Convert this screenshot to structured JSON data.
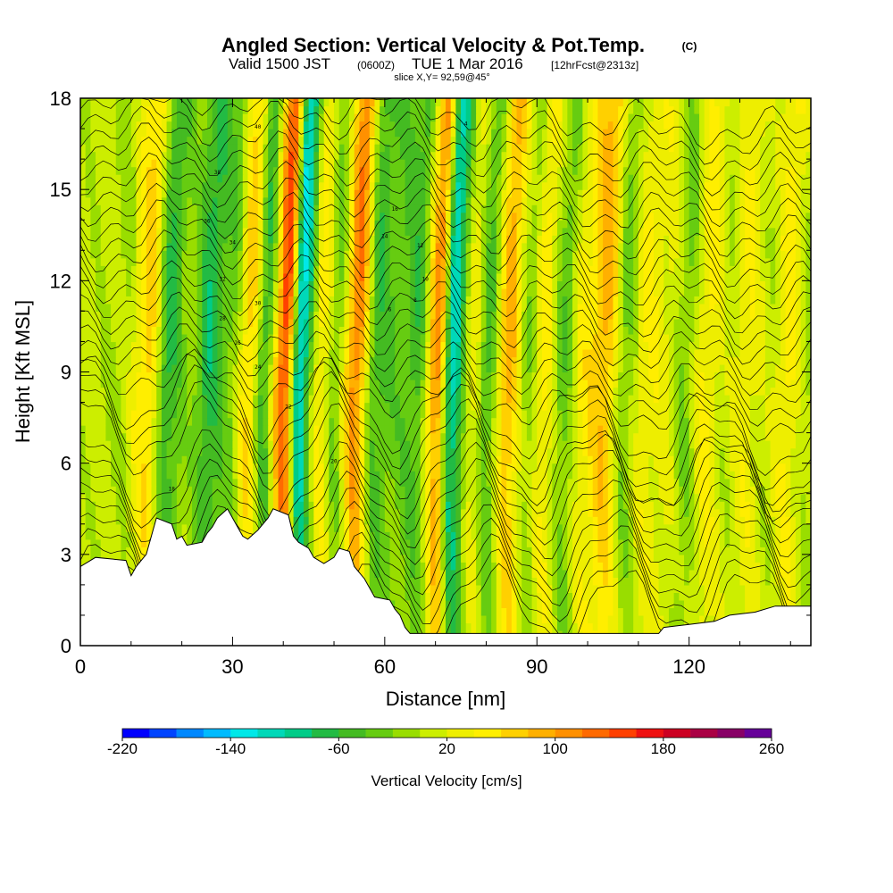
{
  "titles": {
    "main": "Angled Section: Vertical Velocity & Pot.Temp.",
    "main_suffix": "(C)",
    "line2_a": "Valid 1500 JST",
    "line2_b": "(0600Z)",
    "line2_c": "TUE 1 Mar 2016",
    "line2_d": "[12hrFcst@2313z]",
    "line3": "slice X,Y= 92,59@45°"
  },
  "chart_data": {
    "type": "heatmap",
    "title": "Angled Section: Vertical Velocity & Pot.Temp.",
    "xlabel": "Distance [nm]",
    "ylabel": "Height [Kft MSL]",
    "xlim": [
      0,
      144
    ],
    "ylim": [
      0,
      18
    ],
    "x_ticks": [
      0,
      30,
      60,
      90,
      120
    ],
    "y_ticks": [
      0,
      3,
      6,
      9,
      12,
      15,
      18
    ],
    "x_tick_labels": [
      "0",
      "30",
      "60",
      "90",
      "120"
    ],
    "y_tick_labels": [
      "0",
      "3",
      "6",
      "9",
      "12",
      "15",
      "18"
    ],
    "colorbar": {
      "title": "Vertical Velocity [cm/s]",
      "min": -220,
      "max": 260,
      "step": 20,
      "tick_values": [
        "-220",
        "-140",
        "-60",
        "20",
        "100",
        "180",
        "260"
      ],
      "colors": [
        "#0000ff",
        "#0044ff",
        "#0088ff",
        "#00bbff",
        "#00e8e8",
        "#00d8b8",
        "#00cc88",
        "#22bb44",
        "#44bb22",
        "#66cc11",
        "#99dd00",
        "#ccee00",
        "#eeee00",
        "#ffee00",
        "#ffd000",
        "#ffb000",
        "#ff9000",
        "#ff6a00",
        "#ff4000",
        "#ee1111",
        "#cc0022",
        "#aa0044",
        "#880066",
        "#660099"
      ]
    },
    "velocity_columns": [
      {
        "x": 3,
        "v": 0
      },
      {
        "x": 8,
        "v": -10
      },
      {
        "x": 13,
        "v": 60
      },
      {
        "x": 17,
        "v": -70
      },
      {
        "x": 21,
        "v": -20
      },
      {
        "x": 25,
        "v": -80
      },
      {
        "x": 29,
        "v": -40
      },
      {
        "x": 33,
        "v": 60
      },
      {
        "x": 36,
        "v": -60
      },
      {
        "x": 40,
        "v": 140
      },
      {
        "x": 43,
        "v": -130
      },
      {
        "x": 47,
        "v": 40
      },
      {
        "x": 50,
        "v": -30
      },
      {
        "x": 54,
        "v": 110
      },
      {
        "x": 58,
        "v": -60
      },
      {
        "x": 62,
        "v": -40
      },
      {
        "x": 66,
        "v": -60
      },
      {
        "x": 70,
        "v": 100
      },
      {
        "x": 73,
        "v": -120
      },
      {
        "x": 77,
        "v": 20
      },
      {
        "x": 80,
        "v": -50
      },
      {
        "x": 84,
        "v": 80
      },
      {
        "x": 88,
        "v": -20
      },
      {
        "x": 91,
        "v": 40
      },
      {
        "x": 95,
        "v": -40
      },
      {
        "x": 99,
        "v": 40
      },
      {
        "x": 103,
        "v": 80
      },
      {
        "x": 107,
        "v": -30
      },
      {
        "x": 111,
        "v": 30
      },
      {
        "x": 115,
        "v": 20
      },
      {
        "x": 119,
        "v": -30
      },
      {
        "x": 123,
        "v": 40
      },
      {
        "x": 127,
        "v": 0
      },
      {
        "x": 131,
        "v": 30
      },
      {
        "x": 135,
        "v": 0
      },
      {
        "x": 139,
        "v": 40
      },
      {
        "x": 143,
        "v": -10
      }
    ],
    "terrain": [
      [
        0,
        2.6
      ],
      [
        3,
        2.9
      ],
      [
        9,
        2.8
      ],
      [
        10,
        2.3
      ],
      [
        11,
        2.6
      ],
      [
        12,
        2.8
      ],
      [
        13,
        3.0
      ],
      [
        14,
        3.6
      ],
      [
        15,
        4.2
      ],
      [
        18,
        4.0
      ],
      [
        19,
        3.5
      ],
      [
        20,
        3.6
      ],
      [
        21,
        3.3
      ],
      [
        24,
        3.4
      ],
      [
        25,
        3.7
      ],
      [
        26,
        3.9
      ],
      [
        27,
        4.2
      ],
      [
        29,
        4.5
      ],
      [
        30,
        4.2
      ],
      [
        31,
        3.9
      ],
      [
        32,
        3.6
      ],
      [
        33,
        3.5
      ],
      [
        35,
        3.8
      ],
      [
        37,
        4.2
      ],
      [
        38,
        4.5
      ],
      [
        41,
        4.3
      ],
      [
        42,
        3.6
      ],
      [
        43,
        3.4
      ],
      [
        45,
        3.2
      ],
      [
        46,
        2.9
      ],
      [
        48,
        2.7
      ],
      [
        50,
        2.9
      ],
      [
        51,
        3.2
      ],
      [
        53,
        3.1
      ],
      [
        54,
        2.6
      ],
      [
        56,
        2.2
      ],
      [
        57,
        1.9
      ],
      [
        58,
        1.6
      ],
      [
        61,
        1.5
      ],
      [
        62,
        1.2
      ],
      [
        63,
        1.0
      ],
      [
        64,
        0.6
      ],
      [
        65,
        0.4
      ],
      [
        114,
        0.4
      ],
      [
        115,
        0.6
      ],
      [
        120,
        0.7
      ],
      [
        125,
        0.8
      ],
      [
        128,
        1.0
      ],
      [
        133,
        1.1
      ],
      [
        137,
        1.3
      ],
      [
        144,
        1.3
      ]
    ],
    "theta_label_values": [
      "40",
      "38",
      "36",
      "34",
      "32",
      "30",
      "28",
      "26",
      "24",
      "22",
      "20",
      "18",
      "16",
      "14",
      "12",
      "10",
      "8",
      "6",
      "4"
    ]
  }
}
